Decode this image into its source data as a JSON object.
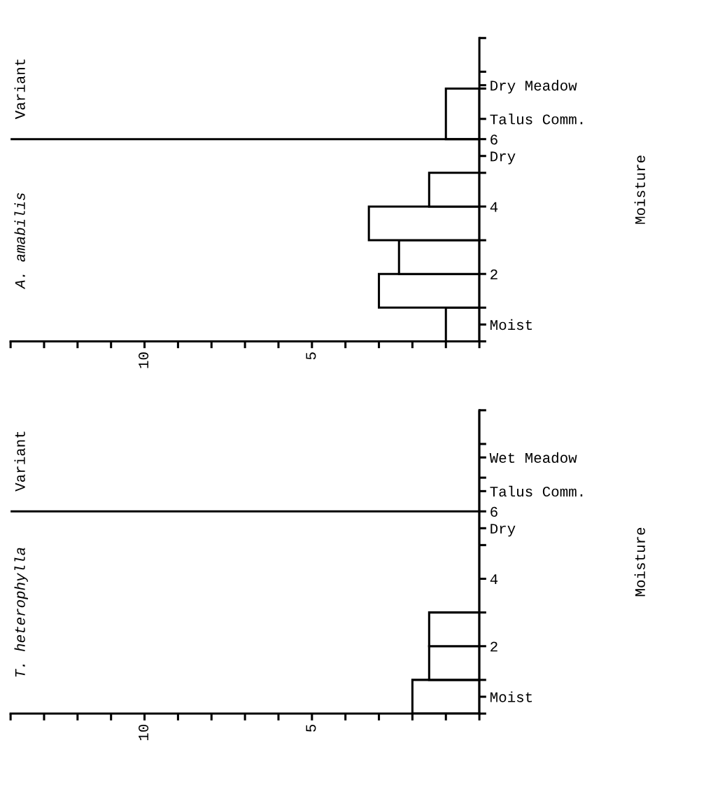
{
  "chart_data": [
    {
      "type": "histogram",
      "orientation": "horizontal",
      "title": "A. amabilis",
      "ylabel": "Moisture",
      "annotations": [
        "Variant"
      ],
      "bins": [
        0,
        1,
        2,
        3,
        4,
        5,
        6,
        7.5
      ],
      "values": [
        1,
        3,
        2.4,
        3.3,
        1.5,
        0,
        1
      ],
      "color": "#000000",
      "xlim": [
        14,
        0
      ],
      "xticks": [
        {
          "value": 0,
          "label": null
        },
        {
          "value": 1,
          "label": null
        },
        {
          "value": 2,
          "label": null
        },
        {
          "value": 3,
          "label": null
        },
        {
          "value": 4,
          "label": null
        },
        5,
        {
          "value": 6,
          "label": null
        },
        {
          "value": 7,
          "label": null
        },
        {
          "value": 8,
          "label": null
        },
        {
          "value": 9,
          "label": null
        },
        10,
        {
          "value": 11,
          "label": null
        },
        {
          "value": 12,
          "label": null
        },
        {
          "value": 13,
          "label": null
        },
        {
          "value": 14,
          "label": null
        }
      ],
      "ylim": [
        0,
        9
      ],
      "yticks": [
        {
          "value": 0,
          "label": null
        },
        {
          "value": 0.5,
          "label": "Moist"
        },
        {
          "value": 1,
          "label": null
        },
        2,
        {
          "value": 3,
          "label": null
        },
        4,
        {
          "value": 5,
          "label": null
        },
        {
          "value": 5.5,
          "label": "Dry"
        },
        6,
        {
          "value": 6.6,
          "label": "Talus Comm."
        },
        {
          "value": 7.5,
          "label": null
        },
        {
          "value": 7.6,
          "label": "Dry Meadow"
        },
        {
          "value": 8,
          "label": null
        },
        {
          "value": 9,
          "label": null
        }
      ],
      "ref_lines": [
        {
          "axis": "y",
          "value": 6,
          "color": "#000000"
        }
      ],
      "grid": false,
      "legend": false
    },
    {
      "type": "histogram",
      "orientation": "horizontal",
      "title": "T. heterophylla",
      "ylabel": "Moisture",
      "annotations": [
        "Variant"
      ],
      "bins": [
        0,
        1,
        2,
        3,
        4,
        5,
        6,
        7,
        8,
        9
      ],
      "values": [
        2,
        1.5,
        1.5,
        0,
        0,
        0,
        0,
        0,
        0
      ],
      "color": "#000000",
      "xlim": [
        14,
        0
      ],
      "xticks": [
        {
          "value": 0,
          "label": null
        },
        {
          "value": 1,
          "label": null
        },
        {
          "value": 2,
          "label": null
        },
        {
          "value": 3,
          "label": null
        },
        {
          "value": 4,
          "label": null
        },
        5,
        {
          "value": 6,
          "label": null
        },
        {
          "value": 7,
          "label": null
        },
        {
          "value": 8,
          "label": null
        },
        {
          "value": 9,
          "label": null
        },
        10,
        {
          "value": 11,
          "label": null
        },
        {
          "value": 12,
          "label": null
        },
        {
          "value": 13,
          "label": null
        },
        {
          "value": 14,
          "label": null
        }
      ],
      "ylim": [
        0,
        9
      ],
      "yticks": [
        {
          "value": 0,
          "label": null
        },
        {
          "value": 0.5,
          "label": "Moist"
        },
        {
          "value": 1,
          "label": null
        },
        2,
        {
          "value": 3,
          "label": null
        },
        4,
        {
          "value": 5,
          "label": null
        },
        {
          "value": 5.5,
          "label": "Dry"
        },
        6,
        {
          "value": 6.6,
          "label": "Talus Comm."
        },
        {
          "value": 7,
          "label": null
        },
        {
          "value": 7.6,
          "label": "Wet Meadow"
        },
        {
          "value": 8,
          "label": null
        },
        {
          "value": 9,
          "label": null
        }
      ],
      "ref_lines": [
        {
          "axis": "y",
          "value": 6,
          "color": "#000000"
        }
      ],
      "grid": false,
      "legend": false
    }
  ]
}
